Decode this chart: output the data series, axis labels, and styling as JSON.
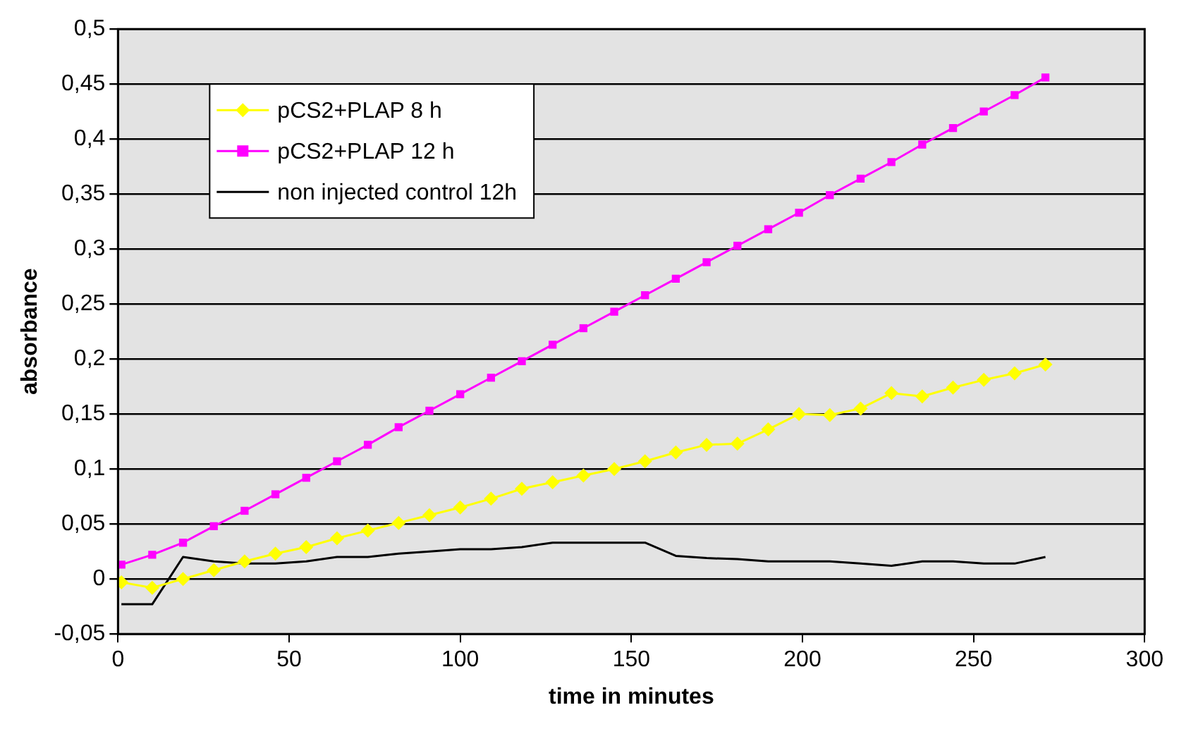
{
  "chart_data": {
    "type": "line",
    "xlabel": "time in minutes",
    "ylabel": "absorbance",
    "x": [
      1,
      10,
      19,
      28,
      37,
      46,
      55,
      64,
      73,
      82,
      91,
      100,
      109,
      118,
      127,
      136,
      145,
      154,
      163,
      172,
      181,
      190,
      199,
      208,
      217,
      226,
      235,
      244,
      253,
      262,
      271
    ],
    "series": [
      {
        "name": "pCS2+PLAP 8 h",
        "color": "#ffff00",
        "marker": "diamond",
        "values": [
          -0.003,
          -0.008,
          0.0,
          0.008,
          0.016,
          0.023,
          0.029,
          0.037,
          0.044,
          0.051,
          0.058,
          0.065,
          0.073,
          0.082,
          0.088,
          0.094,
          0.1,
          0.107,
          0.115,
          0.122,
          0.123,
          0.136,
          0.15,
          0.149,
          0.155,
          0.169,
          0.166,
          0.174,
          0.181,
          0.187,
          0.195
        ]
      },
      {
        "name": "pCS2+PLAP 12 h",
        "color": "#ff00ff",
        "marker": "square",
        "values": [
          0.013,
          0.022,
          0.033,
          0.048,
          0.062,
          0.077,
          0.092,
          0.107,
          0.122,
          0.138,
          0.153,
          0.168,
          0.183,
          0.198,
          0.213,
          0.228,
          0.243,
          0.258,
          0.273,
          0.288,
          0.303,
          0.318,
          0.333,
          0.349,
          0.364,
          0.379,
          0.395,
          0.41,
          0.425,
          0.44,
          0.456
        ]
      },
      {
        "name": "non injected control 12h",
        "color": "#000000",
        "marker": "none",
        "values": [
          -0.023,
          -0.023,
          0.02,
          0.016,
          0.014,
          0.014,
          0.016,
          0.02,
          0.02,
          0.023,
          0.025,
          0.027,
          0.027,
          0.029,
          0.033,
          0.033,
          0.033,
          0.033,
          0.021,
          0.019,
          0.018,
          0.016,
          0.016,
          0.016,
          0.014,
          0.012,
          0.016,
          0.016,
          0.014,
          0.014,
          0.02
        ]
      }
    ],
    "xlim": [
      0,
      300
    ],
    "xticks": [
      0,
      50,
      100,
      150,
      200,
      250,
      300
    ],
    "ylim": [
      -0.05,
      0.5
    ],
    "yticks": [
      {
        "value": -0.05,
        "label": "-0,05"
      },
      {
        "value": 0,
        "label": "0"
      },
      {
        "value": 0.05,
        "label": "0,05"
      },
      {
        "value": 0.1,
        "label": "0,1"
      },
      {
        "value": 0.15,
        "label": "0,15"
      },
      {
        "value": 0.2,
        "label": "0,2"
      },
      {
        "value": 0.25,
        "label": "0,25"
      },
      {
        "value": 0.3,
        "label": "0,3"
      },
      {
        "value": 0.35,
        "label": "0,35"
      },
      {
        "value": 0.4,
        "label": "0,4"
      },
      {
        "value": 0.45,
        "label": "0,45"
      },
      {
        "value": 0.5,
        "label": "0,5"
      }
    ],
    "grid": "y",
    "legend": "top left",
    "line_style": "solid"
  }
}
